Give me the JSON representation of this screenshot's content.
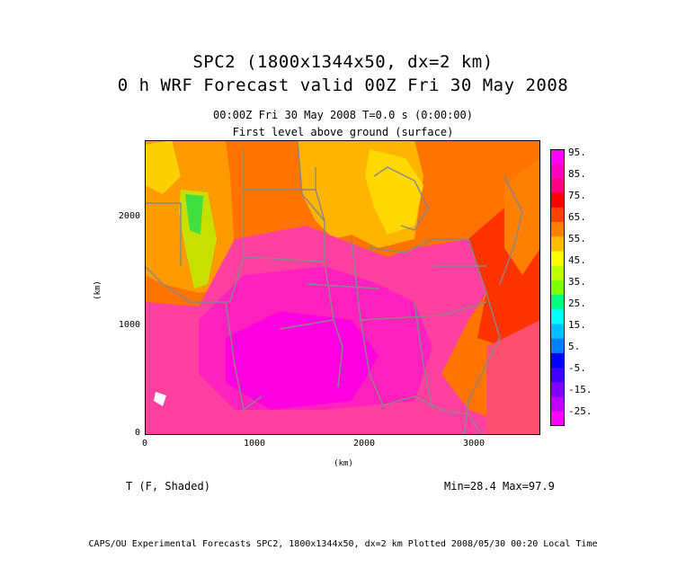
{
  "header": {
    "title_line1": "SPC2 (1800x1344x50, dx=2 km)",
    "title_line2": "0 h WRF Forecast valid 00Z Fri 30 May 2008",
    "subtitle_line1": "00:00Z Fri 30 May 2008     T=0.0 s (0:00:00)",
    "subtitle_line2": "First level above ground (surface)"
  },
  "axes": {
    "x_ticks": [
      "0",
      "1000",
      "2000",
      "3000"
    ],
    "y_ticks": [
      "0",
      "1000",
      "2000"
    ],
    "x_unit": "(km)",
    "y_unit": "(km)",
    "x_range_km": [
      0,
      3600
    ],
    "y_range_km": [
      0,
      2688
    ]
  },
  "colorbar": {
    "labels": [
      "95.",
      "85.",
      "75.",
      "65.",
      "55.",
      "45.",
      "35.",
      "25.",
      "15.",
      "5.",
      "-5.",
      "-15.",
      "-25."
    ],
    "colors": [
      "#ff00ff",
      "#ff00c0",
      "#ff0080",
      "#ff0000",
      "#ff4000",
      "#ff7f00",
      "#ffbf00",
      "#ffff00",
      "#c0ff00",
      "#80ff00",
      "#00ff80",
      "#00ffff",
      "#00bfff",
      "#0080ff",
      "#0000ff",
      "#4000ff",
      "#8000ff",
      "#bf00ff",
      "#ff00ff"
    ]
  },
  "footer_left": "T (F, Shaded)",
  "stats": "Min=28.4 Max=97.9",
  "footer": "CAPS/OU Experimental Forecasts  SPC2, 1800x1344x50, dx=2 km  Plotted 2008/05/30 00:20 Local Time"
}
